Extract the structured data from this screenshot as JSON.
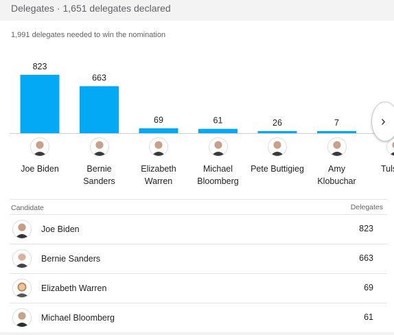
{
  "header": {
    "title": "Delegates · 1,651 delegates declared"
  },
  "subtitle": "1,991 delegates needed to win the nomination",
  "icons": {
    "next": "chevron-right-icon",
    "avatar": "candidate-photo-icon"
  },
  "colors": {
    "bar": "#03a9f4",
    "axis": "#cfcfcf"
  },
  "chart_data": {
    "type": "bar",
    "title": "",
    "xlabel": "",
    "ylabel": "",
    "categories": [
      "Joe Biden",
      "Bernie Sanders",
      "Elizabeth Warren",
      "Michael Bloomberg",
      "Pete Buttigieg",
      "Amy Klobuchar",
      "Tulsi Gabbard"
    ],
    "display_labels": [
      [
        "Joe Biden"
      ],
      [
        "Bernie",
        "Sanders"
      ],
      [
        "Elizabeth",
        "Warren"
      ],
      [
        "Michael",
        "Bloomberg"
      ],
      [
        "Pete Buttigieg"
      ],
      [
        "Amy",
        "Klobuchar"
      ],
      [
        "Tulsi G"
      ]
    ],
    "values": [
      823,
      663,
      69,
      61,
      26,
      7,
      null
    ],
    "value_labels": [
      "823",
      "663",
      "69",
      "61",
      "26",
      "7",
      ""
    ],
    "ylim": [
      0,
      823
    ],
    "grid": false
  },
  "table": {
    "headers": {
      "candidate": "Candidate",
      "delegates": "Delegates"
    },
    "rows": [
      {
        "name": "Joe Biden",
        "delegates": "823"
      },
      {
        "name": "Bernie Sanders",
        "delegates": "663"
      },
      {
        "name": "Elizabeth Warren",
        "delegates": "69"
      },
      {
        "name": "Michael Bloomberg",
        "delegates": "61"
      }
    ]
  }
}
